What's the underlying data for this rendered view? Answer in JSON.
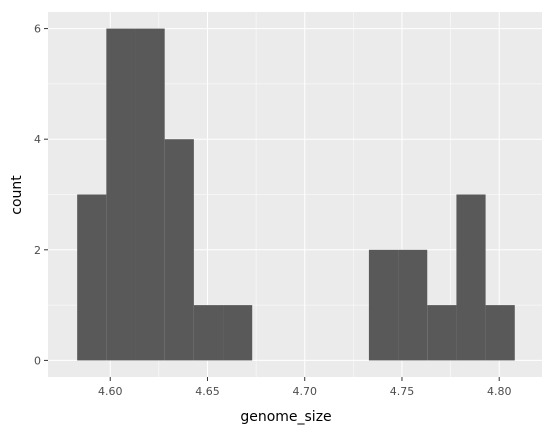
{
  "chart_data": {
    "type": "bar",
    "subtype": "histogram",
    "title": "",
    "xlabel": "genome_size",
    "ylabel": "count",
    "xlim": [
      4.568,
      4.822
    ],
    "ylim": [
      -0.3,
      6.3
    ],
    "x_ticks": [
      4.6,
      4.65,
      4.7,
      4.75,
      4.8
    ],
    "x_tick_labels": [
      "4.60",
      "4.65",
      "4.70",
      "4.75",
      "4.80"
    ],
    "y_ticks": [
      0,
      2,
      4,
      6
    ],
    "y_tick_labels": [
      "0",
      "2",
      "4",
      "6"
    ],
    "bins": [
      {
        "x0": 4.583,
        "x1": 4.598,
        "count": 3
      },
      {
        "x0": 4.598,
        "x1": 4.613,
        "count": 6
      },
      {
        "x0": 4.613,
        "x1": 4.628,
        "count": 6
      },
      {
        "x0": 4.628,
        "x1": 4.643,
        "count": 4
      },
      {
        "x0": 4.643,
        "x1": 4.658,
        "count": 1
      },
      {
        "x0": 4.658,
        "x1": 4.673,
        "count": 1
      },
      {
        "x0": 4.673,
        "x1": 4.688,
        "count": 0
      },
      {
        "x0": 4.688,
        "x1": 4.703,
        "count": 0
      },
      {
        "x0": 4.703,
        "x1": 4.718,
        "count": 0
      },
      {
        "x0": 4.718,
        "x1": 4.733,
        "count": 0
      },
      {
        "x0": 4.733,
        "x1": 4.748,
        "count": 2
      },
      {
        "x0": 4.748,
        "x1": 4.763,
        "count": 2
      },
      {
        "x0": 4.763,
        "x1": 4.778,
        "count": 1
      },
      {
        "x0": 4.778,
        "x1": 4.793,
        "count": 3
      },
      {
        "x0": 4.793,
        "x1": 4.808,
        "count": 1
      }
    ],
    "grid": true,
    "colors": {
      "panel_background": "#ebebeb",
      "grid_major": "#ffffff",
      "bar_fill": "#595959"
    }
  }
}
